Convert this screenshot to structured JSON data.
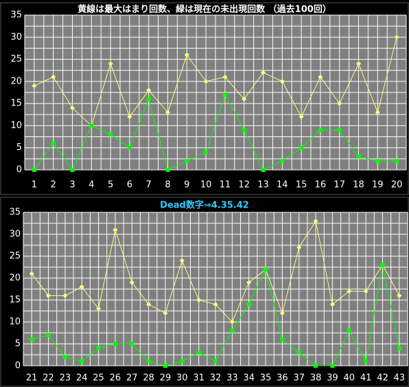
{
  "chart_data": [
    {
      "type": "line",
      "title": "黄線は最大はまり回数、緑は現在の未出現回数 （過去100回）",
      "title_color": "#ffffff",
      "categories": [
        "1",
        "2",
        "3",
        "4",
        "5",
        "6",
        "7",
        "8",
        "9",
        "10",
        "11",
        "12",
        "13",
        "14",
        "15",
        "16",
        "17",
        "18",
        "19",
        "20"
      ],
      "series": [
        {
          "color": "#ffff80",
          "marker": "diamond",
          "values": [
            19,
            21,
            14,
            10,
            24,
            12,
            18,
            13,
            26,
            20,
            21,
            16,
            22,
            20,
            12,
            21,
            15,
            24,
            13,
            30
          ]
        },
        {
          "color": "#00ff00",
          "marker": "square",
          "values": [
            0,
            6,
            0,
            10,
            8,
            5,
            16,
            0,
            2,
            4,
            17,
            9,
            0,
            2,
            5,
            9,
            9,
            3,
            2,
            2
          ]
        }
      ],
      "ylim": [
        0,
        35
      ],
      "yticks": [
        0,
        5,
        10,
        15,
        20,
        25,
        30,
        35
      ],
      "grid": true
    },
    {
      "type": "line",
      "title": "Dead数字⇒4.35.42",
      "title_color": "#33ccff",
      "categories": [
        "21",
        "22",
        "23",
        "24",
        "25",
        "26",
        "27",
        "28",
        "29",
        "30",
        "31",
        "32",
        "33",
        "34",
        "35",
        "36",
        "37",
        "38",
        "39",
        "40",
        "41",
        "42",
        "43"
      ],
      "series": [
        {
          "color": "#ffff80",
          "marker": "diamond",
          "values": [
            21,
            16,
            16,
            18,
            13,
            31,
            19,
            14,
            12,
            24,
            15,
            14,
            10,
            19,
            22,
            12,
            27,
            33,
            14,
            17,
            17,
            23,
            16
          ]
        },
        {
          "color": "#00ff00",
          "marker": "square",
          "values": [
            6,
            7,
            2,
            1,
            4,
            5,
            5,
            1,
            0,
            1,
            3,
            1,
            8,
            14,
            22,
            6,
            3,
            0,
            0,
            8,
            1,
            23,
            4
          ]
        }
      ],
      "ylim": [
        0,
        35
      ],
      "yticks": [
        0,
        5,
        10,
        15,
        20,
        25,
        30,
        35
      ],
      "grid": true
    }
  ]
}
